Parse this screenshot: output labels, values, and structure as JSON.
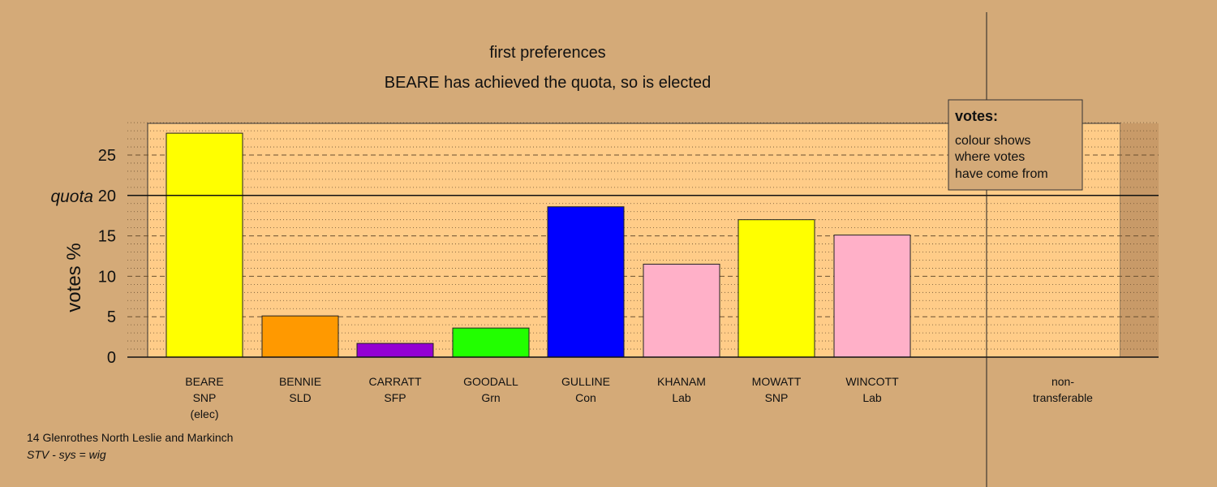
{
  "chart_data": {
    "type": "bar",
    "title": "first preferences",
    "subtitle": "BEARE has achieved the quota, so is elected",
    "ylabel": "votes %",
    "ylim": [
      0,
      29
    ],
    "yticks": [
      0,
      5,
      10,
      15,
      20,
      25
    ],
    "quota": 20,
    "quota_label": "quota",
    "categories": [
      [
        "BEARE",
        "SNP",
        "(elec)"
      ],
      [
        "BENNIE",
        "SLD"
      ],
      [
        "CARRATT",
        "SFP"
      ],
      [
        "GOODALL",
        "Grn"
      ],
      [
        "GULLINE",
        "Con"
      ],
      [
        "KHANAM",
        "Lab"
      ],
      [
        "MOWATT",
        "SNP"
      ],
      [
        "WINCOTT",
        "Lab"
      ]
    ],
    "values": [
      27.7,
      5.1,
      1.7,
      3.6,
      18.6,
      11.5,
      17.0,
      15.1
    ],
    "bar_colors": [
      "#ffff00",
      "#ff9900",
      "#9400d3",
      "#22ff00",
      "#0000ff",
      "#ffb0c8",
      "#ffff00",
      "#ffb0c8"
    ],
    "nontransferable_label": [
      "non-",
      "transferable"
    ],
    "nontransferable_value": 0,
    "legend": {
      "title": "votes:",
      "lines": [
        "colour shows",
        "where votes",
        "have come from"
      ]
    },
    "grid": true
  },
  "footer": {
    "line1": "14 Glenrothes North Leslie and Markinch",
    "line2": "STV - sys = wig"
  },
  "colors": {
    "background": "#d4aa78",
    "plot_area": "#ffcc88",
    "grid": "#6b5030"
  }
}
